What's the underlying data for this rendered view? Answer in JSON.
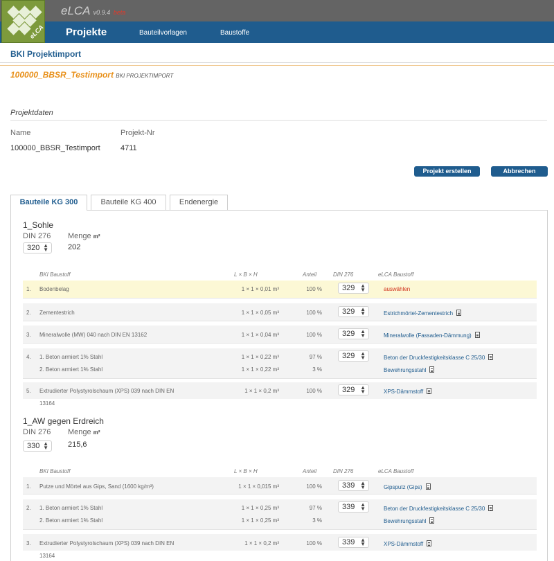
{
  "header": {
    "app_name": "eLCA",
    "version": "v0.9.4",
    "beta": "beta",
    "logo_text": "eLCA",
    "nav": {
      "projekte": "Projekte",
      "bauteilvorlagen": "Bauteilvorlagen",
      "baustoffe": "Baustoffe"
    }
  },
  "page": {
    "title": "BKI Projektimport",
    "project_name": "100000_BBSR_Testimport",
    "project_sub": "BKI PROJEKTIMPORT",
    "section": "Projektdaten",
    "name_label": "Name",
    "projnr_label": "Projekt-Nr",
    "name_value": "100000_BBSR_Testimport",
    "projnr_value": "4711",
    "btn_create": "Projekt erstellen",
    "btn_cancel": "Abbrechen"
  },
  "tabs": [
    "Bauteile KG 300",
    "Bauteile KG 400",
    "Endenergie"
  ],
  "table_headers": {
    "baustoff": "BKI Baustoff",
    "dims": "L × B × H",
    "anteil": "Anteil",
    "din": "DIN 276",
    "elca": "eLCA Baustoff"
  },
  "labels": {
    "din": "DIN 276",
    "menge": "Menge",
    "unit": "m²"
  },
  "components": [
    {
      "title": "1_Sohle",
      "din": "320",
      "menge": "202",
      "rows": [
        {
          "num": "1.",
          "name": "Bodenbelag",
          "dims": "1 × 1 × 0,01 m³",
          "anteil": "100 %",
          "din": "329",
          "elca": "auswählen"
        },
        {
          "num": "2.",
          "name": "Zementestrich",
          "dims": "1 × 1 × 0,05 m³",
          "anteil": "100 %",
          "din": "329",
          "elca": "Estrichmörtel-Zementestrich"
        },
        {
          "num": "3.",
          "name": "Mineralwolle (MW) 040 nach DIN EN 13162",
          "dims": "1 × 1 × 0,04 m³",
          "anteil": "100 %",
          "din": "329",
          "elca": "Mineralwolle (Fassaden-Dämmung)"
        },
        {
          "num": "4.",
          "name": "1. Beton armiert 1% Stahl",
          "dims": "1 × 1 × 0,22 m³",
          "anteil": "97 %",
          "din": "329",
          "elca": "Beton der Druckfestigkeitsklasse C 25/30",
          "name2": "2. Beton armiert 1% Stahl",
          "dims2": "1 × 1 × 0,22 m³",
          "anteil2": "3 %",
          "elca2": "Bewehrungsstahl"
        },
        {
          "num": "5.",
          "name": "Extrudierter Polystyrolschaum (XPS) 039 nach DIN EN",
          "name_cont": "13164",
          "dims": "1 × 1 × 0,2 m³",
          "anteil": "100 %",
          "din": "329",
          "elca": "XPS-Dämmstoff"
        }
      ]
    },
    {
      "title": "1_AW gegen Erdreich",
      "din": "330",
      "menge": "215,6",
      "rows": [
        {
          "num": "1.",
          "name": "Putze und Mörtel aus Gips, Sand (1600 kg/m³)",
          "dims": "1 × 1 × 0,015 m³",
          "anteil": "100 %",
          "din": "339",
          "elca": "Gipsputz (Gips)"
        },
        {
          "num": "2.",
          "name": "1. Beton armiert 1% Stahl",
          "dims": "1 × 1 × 0,25 m³",
          "anteil": "97 %",
          "din": "339",
          "elca": "Beton der Druckfestigkeitsklasse C 25/30",
          "name2": "2. Beton armiert 1% Stahl",
          "dims2": "1 × 1 × 0,25 m³",
          "anteil2": "3 %",
          "elca2": "Bewehrungsstahl"
        },
        {
          "num": "3.",
          "name": "Extrudierter Polystyrolschaum (XPS) 039 nach DIN EN",
          "name_cont": "13164",
          "dims": "1 × 1 × 0,2 m³",
          "anteil": "100 %",
          "din": "339",
          "elca": "XPS-Dämmstoff"
        }
      ]
    }
  ]
}
